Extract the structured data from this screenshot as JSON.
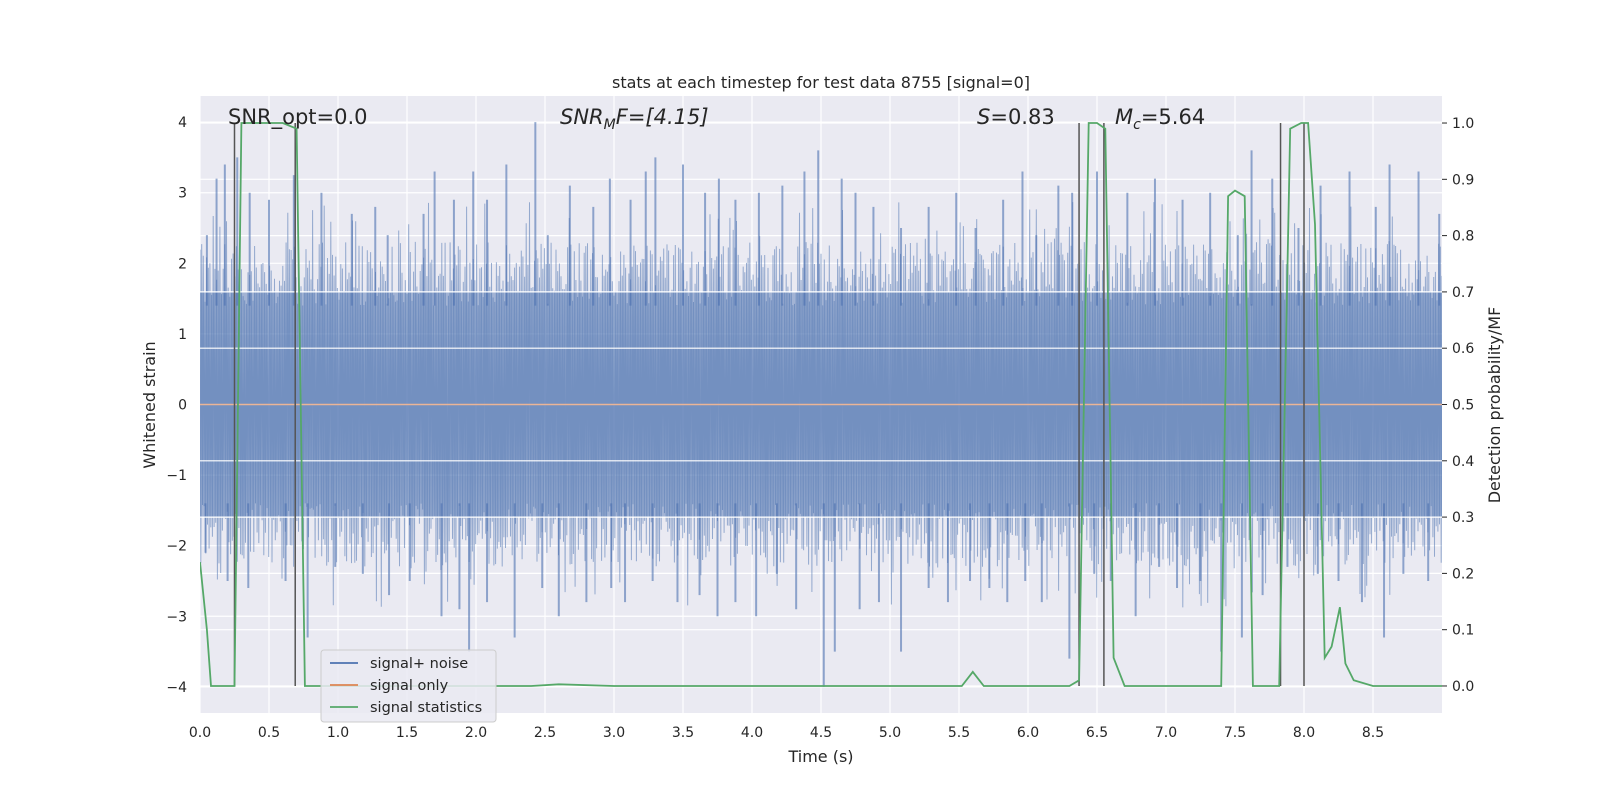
{
  "chart_data": {
    "type": "line",
    "title": "stats at each timestep for test data 8755 [signal=0]",
    "xlabel": "Time (s)",
    "ylabel": "Whitened strain",
    "y2label": "Detection probability/MF",
    "xlim": [
      0,
      9.0
    ],
    "ylim": [
      -4.37,
      4.37
    ],
    "y2lim": [
      -0.048,
      1.048
    ],
    "xticks": [
      0.0,
      0.5,
      1.0,
      1.5,
      2.0,
      2.5,
      3.0,
      3.5,
      4.0,
      4.5,
      5.0,
      5.5,
      6.0,
      6.5,
      7.0,
      7.5,
      8.0,
      8.5
    ],
    "xtick_labels": [
      "0.0",
      "0.5",
      "1.0",
      "1.5",
      "2.0",
      "2.5",
      "3.0",
      "3.5",
      "4.0",
      "4.5",
      "5.0",
      "5.5",
      "6.0",
      "6.5",
      "7.0",
      "7.5",
      "8.0",
      "8.5"
    ],
    "yticks": [
      -4,
      -3,
      -2,
      -1,
      0,
      1,
      2,
      3,
      4
    ],
    "ytick_labels": [
      "−4",
      "−3",
      "−2",
      "−1",
      "0",
      "1",
      "2",
      "3",
      "4"
    ],
    "y2ticks": [
      0.0,
      0.1,
      0.2,
      0.3,
      0.4,
      0.5,
      0.6,
      0.7,
      0.8,
      0.9,
      1.0
    ],
    "y2tick_labels": [
      "0.0",
      "0.1",
      "0.2",
      "0.3",
      "0.4",
      "0.5",
      "0.6",
      "0.7",
      "0.8",
      "0.9",
      "1.0"
    ],
    "grid": true,
    "legend_position": "lower-left",
    "annotations": {
      "snr_opt": "SNR_opt=0.0",
      "snr_mf_main": "SNR",
      "snr_mf_sub": "M",
      "snr_mf_rest": "F=[4.15]",
      "s_italic": "S",
      "s_rest": "=0.83",
      "mc_main": "M",
      "mc_sub": "c",
      "mc_rest": "=5.64"
    },
    "series": [
      {
        "name": "signal+ noise",
        "color": "#4c72b0",
        "style": "noise band",
        "bulk_range": [
          -1.6,
          1.6
        ],
        "peaks": [
          [
            0.05,
            2.4
          ],
          [
            0.12,
            3.2
          ],
          [
            0.18,
            3.4
          ],
          [
            0.27,
            3.5
          ],
          [
            0.36,
            3.0
          ],
          [
            0.5,
            2.9
          ],
          [
            0.68,
            3.25
          ],
          [
            0.88,
            3.0
          ],
          [
            1.1,
            2.7
          ],
          [
            1.27,
            2.8
          ],
          [
            1.36,
            2.4
          ],
          [
            1.62,
            2.7
          ],
          [
            1.7,
            3.3
          ],
          [
            1.84,
            2.9
          ],
          [
            1.98,
            3.3
          ],
          [
            2.08,
            2.9
          ],
          [
            2.22,
            3.4
          ],
          [
            2.43,
            4.0
          ],
          [
            2.52,
            2.4
          ],
          [
            2.68,
            3.1
          ],
          [
            2.85,
            2.8
          ],
          [
            2.97,
            3.2
          ],
          [
            3.12,
            2.9
          ],
          [
            3.23,
            3.3
          ],
          [
            3.3,
            3.5
          ],
          [
            3.5,
            3.4
          ],
          [
            3.66,
            3.0
          ],
          [
            3.76,
            3.2
          ],
          [
            3.88,
            2.9
          ],
          [
            4.05,
            3.0
          ],
          [
            4.22,
            3.1
          ],
          [
            4.38,
            3.3
          ],
          [
            4.48,
            3.6
          ],
          [
            4.65,
            3.2
          ],
          [
            4.75,
            3.0
          ],
          [
            4.88,
            2.8
          ],
          [
            5.08,
            2.5
          ],
          [
            5.28,
            2.8
          ],
          [
            5.48,
            3.0
          ],
          [
            5.62,
            2.5
          ],
          [
            5.82,
            2.9
          ],
          [
            5.96,
            3.3
          ],
          [
            6.06,
            2.4
          ],
          [
            6.22,
            3.1
          ],
          [
            6.32,
            3.0
          ],
          [
            6.5,
            3.3
          ],
          [
            6.72,
            3.0
          ],
          [
            6.92,
            3.2
          ],
          [
            7.12,
            2.9
          ],
          [
            7.32,
            3.0
          ],
          [
            7.52,
            2.4
          ],
          [
            7.62,
            3.6
          ],
          [
            7.77,
            3.2
          ],
          [
            7.96,
            2.5
          ],
          [
            8.12,
            3.1
          ],
          [
            8.33,
            3.3
          ],
          [
            8.52,
            2.8
          ],
          [
            8.62,
            3.4
          ],
          [
            8.83,
            3.3
          ],
          [
            8.98,
            2.7
          ]
        ],
        "troughs": [
          [
            0.04,
            -2.1
          ],
          [
            0.2,
            -2.5
          ],
          [
            0.35,
            -2.6
          ],
          [
            0.62,
            -2.5
          ],
          [
            0.78,
            -3.3
          ],
          [
            0.98,
            -2.3
          ],
          [
            1.18,
            -2.4
          ],
          [
            1.37,
            -2.7
          ],
          [
            1.52,
            -2.5
          ],
          [
            1.75,
            -3.0
          ],
          [
            1.88,
            -2.9
          ],
          [
            1.95,
            -3.5
          ],
          [
            2.08,
            -2.8
          ],
          [
            2.28,
            -3.3
          ],
          [
            2.48,
            -2.6
          ],
          [
            2.6,
            -3.0
          ],
          [
            2.8,
            -2.8
          ],
          [
            2.98,
            -2.6
          ],
          [
            3.08,
            -2.8
          ],
          [
            3.28,
            -2.5
          ],
          [
            3.46,
            -2.8
          ],
          [
            3.62,
            -2.7
          ],
          [
            3.75,
            -3.0
          ],
          [
            3.88,
            -2.8
          ],
          [
            4.03,
            -3.0
          ],
          [
            4.18,
            -2.4
          ],
          [
            4.32,
            -2.9
          ],
          [
            4.52,
            -4.0
          ],
          [
            4.6,
            -3.5
          ],
          [
            4.78,
            -2.9
          ],
          [
            4.92,
            -2.8
          ],
          [
            5.08,
            -3.5
          ],
          [
            5.28,
            -2.6
          ],
          [
            5.42,
            -2.8
          ],
          [
            5.58,
            -2.5
          ],
          [
            5.72,
            -2.6
          ],
          [
            5.85,
            -2.8
          ],
          [
            5.98,
            -2.5
          ],
          [
            6.1,
            -2.8
          ],
          [
            6.3,
            -3.6
          ],
          [
            6.48,
            -2.4
          ],
          [
            6.6,
            -2.5
          ],
          [
            6.78,
            -3.0
          ],
          [
            6.95,
            -2.3
          ],
          [
            7.08,
            -2.6
          ],
          [
            7.25,
            -2.5
          ],
          [
            7.4,
            -3.5
          ],
          [
            7.55,
            -3.3
          ],
          [
            7.7,
            -2.7
          ],
          [
            7.88,
            -2.3
          ],
          [
            8.1,
            -2.4
          ],
          [
            8.25,
            -2.5
          ],
          [
            8.42,
            -2.8
          ],
          [
            8.58,
            -3.3
          ],
          [
            8.72,
            -2.4
          ],
          [
            8.9,
            -2.5
          ]
        ]
      },
      {
        "name": "signal only",
        "color": "#dd8452",
        "x": [
          0.0,
          9.0
        ],
        "y": [
          0,
          0
        ]
      },
      {
        "name": "signal statistics",
        "color": "#55a868",
        "axis": "right",
        "x": [
          0.0,
          0.05,
          0.08,
          0.22,
          0.25,
          0.3,
          0.6,
          0.7,
          0.76,
          0.9,
          1.5,
          2.0,
          2.4,
          2.6,
          3.0,
          4.0,
          5.0,
          5.52,
          5.6,
          5.68,
          6.0,
          6.3,
          6.37,
          6.44,
          6.5,
          6.56,
          6.62,
          6.7,
          7.0,
          7.4,
          7.45,
          7.5,
          7.57,
          7.63,
          7.7,
          7.82,
          7.9,
          7.98,
          8.03,
          8.08,
          8.15,
          8.2,
          8.26,
          8.3,
          8.36,
          8.5,
          9.0
        ],
        "y": [
          0.22,
          0.1,
          0.0,
          0.0,
          0.0,
          1.0,
          1.0,
          0.99,
          0.0,
          0.0,
          0.0,
          0.0,
          0.0,
          0.003,
          0.0,
          0.0,
          0.0,
          0.0,
          0.025,
          0.0,
          0.0,
          0.0,
          0.01,
          1.0,
          1.0,
          0.99,
          0.05,
          0.0,
          0.0,
          0.0,
          0.87,
          0.88,
          0.87,
          0.0,
          0.0,
          0.0,
          0.99,
          1.0,
          1.0,
          0.82,
          0.05,
          0.07,
          0.14,
          0.04,
          0.01,
          0.0,
          0.0
        ]
      }
    ],
    "vertical_lines": [
      0.25,
      0.69,
      6.37,
      6.55,
      7.83,
      8.0
    ]
  }
}
